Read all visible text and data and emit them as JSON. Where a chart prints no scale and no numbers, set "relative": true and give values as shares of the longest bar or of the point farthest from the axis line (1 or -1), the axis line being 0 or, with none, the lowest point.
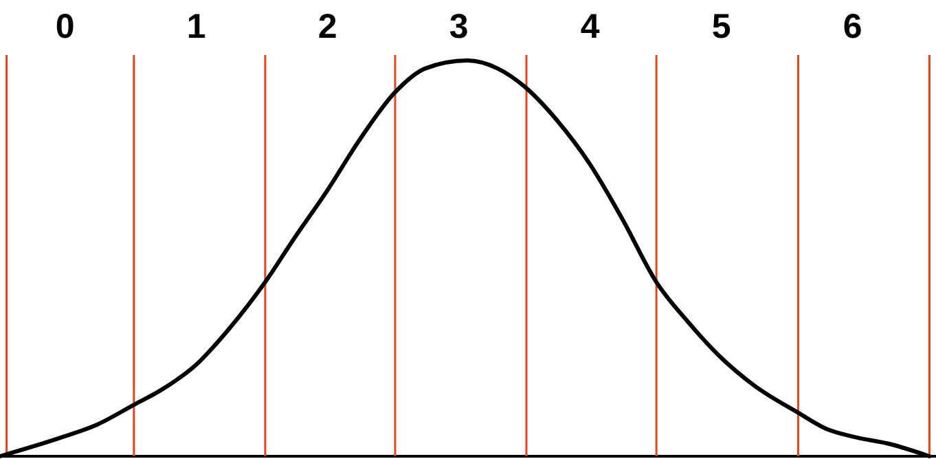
{
  "chart_data": {
    "type": "line",
    "relative": true,
    "xlim": [
      -0.49,
      6.64
    ],
    "xticks": [
      0,
      1,
      2,
      3,
      4,
      5,
      6
    ],
    "tick_labels": "x",
    "grid": false,
    "marker": "none",
    "line_style": "solid",
    "series": [
      {
        "color": "#000000",
        "x": [
          -0.49,
          0,
          0.25,
          0.53,
          0.75,
          1,
          1.25,
          1.53,
          1.75,
          2,
          2.25,
          2.52,
          2.75,
          3.07,
          3.3,
          3.52,
          3.75,
          4,
          4.25,
          4.51,
          4.75,
          5,
          5.25,
          5.59,
          5.8,
          6,
          6.3,
          6.59
        ],
        "values": [
          0,
          0.05,
          0.08,
          0.13,
          0.17,
          0.23,
          0.32,
          0.44,
          0.55,
          0.67,
          0.8,
          0.92,
          0.98,
          1,
          0.98,
          0.93,
          0.85,
          0.74,
          0.6,
          0.44,
          0.34,
          0.25,
          0.18,
          0.11,
          0.07,
          0.05,
          0.03,
          0
        ]
      }
    ],
    "ref_lines": [
      {
        "axis": "x",
        "value": -0.44,
        "color": "#e8441a"
      },
      {
        "axis": "x",
        "value": 0.53,
        "color": "#e8441a"
      },
      {
        "axis": "x",
        "value": 1.53,
        "color": "#e8441a"
      },
      {
        "axis": "x",
        "value": 2.52,
        "color": "#e8441a"
      },
      {
        "axis": "x",
        "value": 3.52,
        "color": "#e8441a"
      },
      {
        "axis": "x",
        "value": 4.51,
        "color": "#e8441a"
      },
      {
        "axis": "x",
        "value": 5.59,
        "color": "#e8441a"
      },
      {
        "axis": "x",
        "value": 6.59,
        "color": "#e8441a"
      }
    ]
  }
}
